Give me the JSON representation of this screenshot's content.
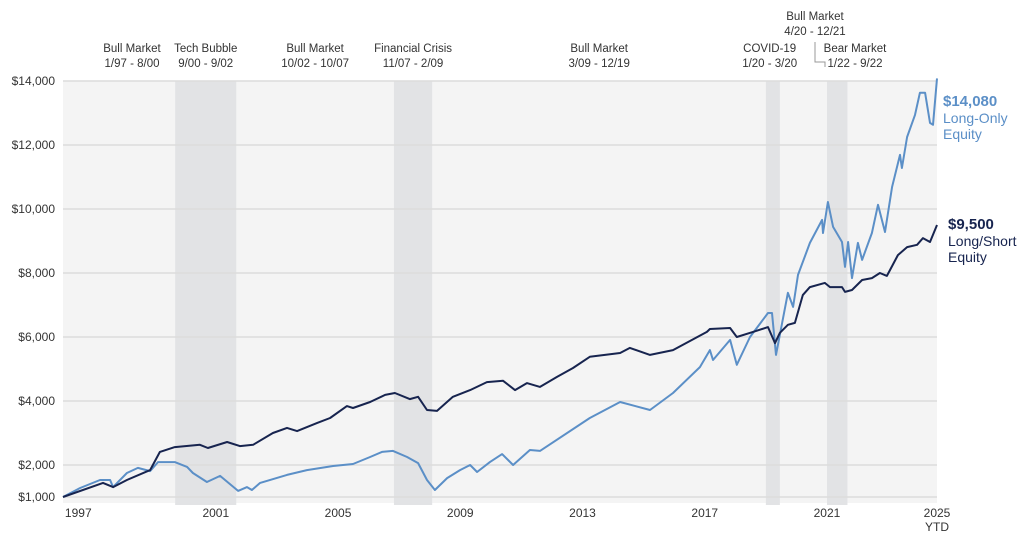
{
  "chart_data": {
    "type": "line",
    "title": "",
    "xlabel": "",
    "ylabel": "",
    "xlim": [
      1997,
      2025.6
    ],
    "ylim": [
      1000,
      14000
    ],
    "yticks": [
      1000,
      2000,
      4000,
      6000,
      8000,
      10000,
      12000,
      14000
    ],
    "ytick_labels": [
      "$1,000",
      "$2,000",
      "$4,000",
      "$6,000",
      "$8,000",
      "$10,000",
      "$12,000",
      "$14,000"
    ],
    "xtick_labels": [
      "1997",
      "2001",
      "2005",
      "2009",
      "2013",
      "2017",
      "2021",
      "2025"
    ],
    "xtick_years": [
      1997,
      2001,
      2005,
      2009,
      2013,
      2017,
      2021,
      2025
    ],
    "last_tick_sublabel": "YTD",
    "grid": true,
    "background": "#f4f4f4",
    "shade_color": "#e2e3e5",
    "periods": [
      {
        "name": "Bull Market",
        "range": "1/97 - 8/00",
        "start": 1997.0,
        "end": 2000.6,
        "shaded": false
      },
      {
        "name": "Tech Bubble",
        "range": "9/00 - 9/02",
        "start": 2000.67,
        "end": 2002.67,
        "shaded": true
      },
      {
        "name": "Bull Market",
        "range": "10/02 - 10/07",
        "start": 2002.75,
        "end": 2007.75,
        "shaded": false
      },
      {
        "name": "Financial Crisis",
        "range": "11/07 - 2/09",
        "start": 2007.83,
        "end": 2009.08,
        "shaded": true
      },
      {
        "name": "Bull Market",
        "range": "3/09 - 12/19",
        "start": 2009.17,
        "end": 2019.92,
        "shaded": false
      },
      {
        "name": "COVID-19",
        "range": "1/20 - 3/20",
        "start": 2020.0,
        "end": 2020.25,
        "shaded": true
      },
      {
        "name": "Bull Market",
        "range": "4/20 - 12/21",
        "start": 2020.25,
        "end": 2021.92,
        "shaded": false
      },
      {
        "name": "Bear Market",
        "range": "1/22 - 9/22",
        "start": 2022.0,
        "end": 2022.67,
        "shaded": true
      }
    ],
    "series": [
      {
        "name": "Long-Only Equity",
        "end_label": "$14,080",
        "label_lines": [
          "Long-Only",
          "Equity"
        ],
        "color": "#5b8fc7",
        "x": [
          1997.0,
          1997.56,
          1998.21,
          1998.54,
          1998.64,
          1999.09,
          1999.45,
          1999.85,
          2000.11,
          2000.66,
          2001.06,
          2001.25,
          2001.71,
          2002.14,
          2002.73,
          2003.02,
          2003.18,
          2003.45,
          2004.33,
          2004.98,
          2005.84,
          2006.49,
          2007.05,
          2007.44,
          2007.8,
          2008.26,
          2008.62,
          2008.91,
          2009.17,
          2009.57,
          2009.99,
          2010.32,
          2010.55,
          2010.97,
          2011.37,
          2011.73,
          2012.28,
          2012.61,
          2014.24,
          2015.23,
          2016.21,
          2016.96,
          2017.84,
          2018.17,
          2018.27,
          2018.83,
          2019.05,
          2019.48,
          2020.07,
          2020.2,
          2020.33,
          2020.72,
          2020.89,
          2021.05,
          2021.44,
          2021.84,
          2021.87,
          2022.03,
          2022.2,
          2022.49,
          2022.59,
          2022.69,
          2022.82,
          2023.01,
          2023.15,
          2023.47,
          2023.67,
          2023.9,
          2024.13,
          2024.39,
          2024.45,
          2024.62,
          2024.88,
          2025.04,
          2025.21,
          2025.37,
          2025.47,
          2025.6
        ],
        "values": [
          1000,
          1280,
          1530,
          1530,
          1310,
          1750,
          1910,
          1810,
          2090,
          2090,
          1940,
          1750,
          1470,
          1660,
          1190,
          1310,
          1220,
          1440,
          1690,
          1840,
          1970,
          2030,
          2250,
          2410,
          2440,
          2250,
          2060,
          1530,
          1220,
          1590,
          1840,
          2000,
          1780,
          2090,
          2340,
          2000,
          2470,
          2440,
          3470,
          3970,
          3720,
          4250,
          5060,
          5590,
          5280,
          5910,
          5130,
          6000,
          6750,
          6750,
          5440,
          7380,
          6940,
          7940,
          8940,
          9660,
          9250,
          10220,
          9440,
          8970,
          8190,
          8970,
          7840,
          8940,
          8410,
          9250,
          10130,
          9280,
          10690,
          11690,
          11280,
          12250,
          12940,
          13630,
          13630,
          12690,
          12630,
          14080
        ]
      },
      {
        "name": "Long/Short Equity",
        "end_label": "$9,500",
        "label_lines": [
          "Long/Short",
          "Equity"
        ],
        "color": "#17244f",
        "x": [
          1997.0,
          1998.31,
          1998.64,
          1999.09,
          1999.85,
          2000.17,
          2000.66,
          2001.48,
          2001.74,
          2002.37,
          2002.79,
          2003.22,
          2003.87,
          2004.33,
          2004.66,
          2005.31,
          2005.74,
          2006.29,
          2006.49,
          2007.05,
          2007.54,
          2007.86,
          2008.35,
          2008.62,
          2008.91,
          2009.24,
          2009.76,
          2010.32,
          2010.87,
          2011.4,
          2011.79,
          2012.18,
          2012.61,
          2013.16,
          2013.69,
          2014.24,
          2015.23,
          2015.55,
          2016.21,
          2016.96,
          2018.07,
          2018.17,
          2018.83,
          2019.05,
          2019.58,
          2020.07,
          2020.3,
          2020.46,
          2020.72,
          2020.95,
          2021.21,
          2021.44,
          2021.93,
          2022.1,
          2022.49,
          2022.59,
          2022.82,
          2023.15,
          2023.47,
          2023.73,
          2023.96,
          2024.32,
          2024.62,
          2024.95,
          2025.14,
          2025.37,
          2025.6
        ],
        "values": [
          1000,
          1440,
          1310,
          1530,
          1840,
          2410,
          2560,
          2630,
          2530,
          2720,
          2590,
          2630,
          3000,
          3160,
          3060,
          3310,
          3470,
          3840,
          3780,
          3970,
          4190,
          4250,
          4060,
          4130,
          3720,
          3690,
          4130,
          4340,
          4590,
          4630,
          4340,
          4560,
          4440,
          4750,
          5030,
          5380,
          5500,
          5660,
          5440,
          5590,
          6160,
          6250,
          6280,
          6000,
          6160,
          6310,
          5810,
          6130,
          6380,
          6440,
          7310,
          7560,
          7690,
          7560,
          7560,
          7410,
          7470,
          7780,
          7840,
          8000,
          7910,
          8560,
          8810,
          8880,
          9090,
          8970,
          9500
        ]
      }
    ]
  }
}
